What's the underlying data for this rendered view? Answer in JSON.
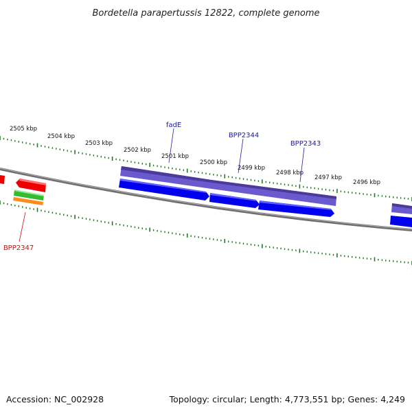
{
  "title": "Bordetella parapertussis 12822, complete genome",
  "footer": {
    "accession": "Accession: NC_002928",
    "summary": "Topology: circular; Length: 4,773,551 bp; Genes: 4,249"
  },
  "colors": {
    "backbone": "#7a7a7a",
    "tick": "#1f7a1f",
    "label_blue": "#1a1aa6",
    "label_red": "#cc1111",
    "cds_blue": "#0000ee",
    "gene_purple": "#6a5acd",
    "cds_red": "#ee0000",
    "rna_green": "#33bb33",
    "rna_orange": "#ff8c1a"
  },
  "kbp_labels": [
    "2505 kbp",
    "2504 kbp",
    "2503 kbp",
    "2502 kbp",
    "2501 kbp",
    "2500 kbp",
    "2499 kbp",
    "2498 kbp",
    "2497 kbp",
    "2496 kbp"
  ],
  "gene_labels": [
    {
      "id": "fadE",
      "text": "fadE",
      "color": "#1a1aa6"
    },
    {
      "id": "BPP2344",
      "text": "BPP2344",
      "color": "#1a1aa6"
    },
    {
      "id": "BPP2343",
      "text": "BPP2343",
      "color": "#1a1aa6"
    },
    {
      "id": "BPP2347",
      "text": "BPP2347",
      "color": "#cc1111"
    }
  ]
}
